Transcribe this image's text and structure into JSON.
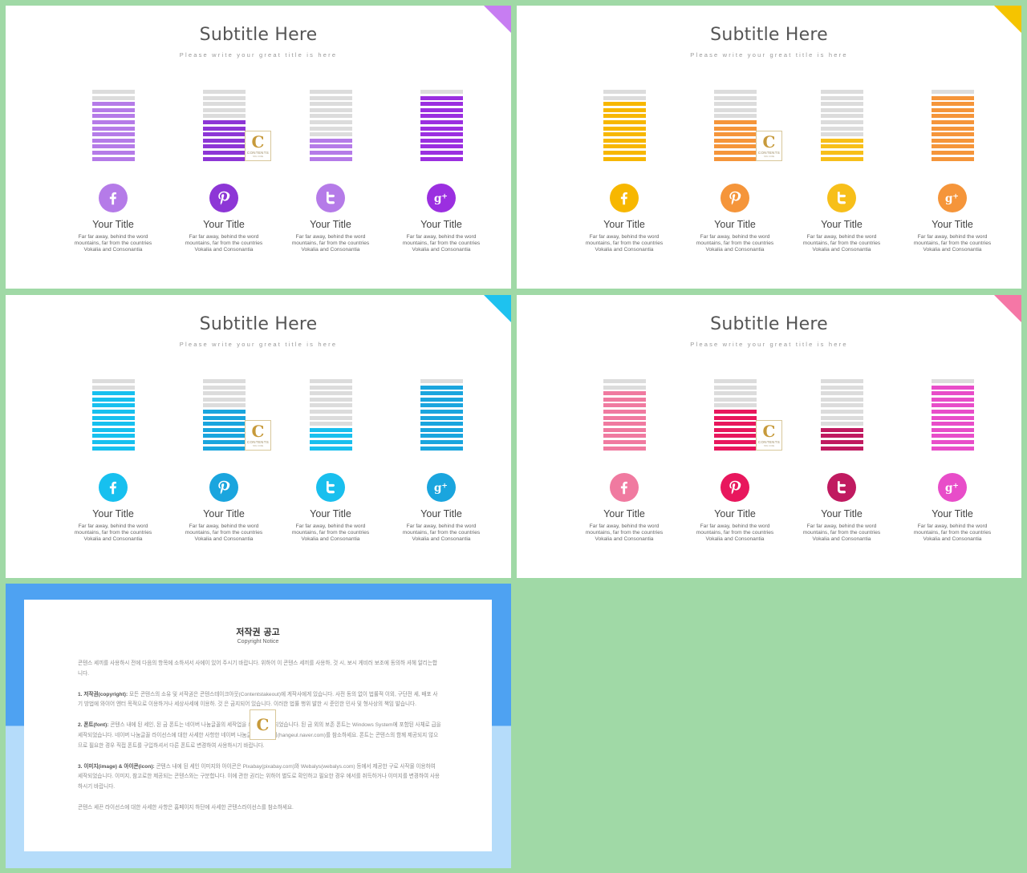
{
  "slides": [
    {
      "id": "purple",
      "title": "Subtitle Here",
      "subtitle": "Please write your great title is here",
      "accent": "#c77df2",
      "columns": [
        {
          "title": "Your Title",
          "desc": "Far far away, behind the word mountains, far from the countries Vokalia and Consonantia",
          "icon": "facebook-icon",
          "color": "#b57be8",
          "level": 0.83
        },
        {
          "title": "Your Title",
          "desc": "Far far away, behind the word mountains, far from the countries Vokalia and Consonantia",
          "icon": "pinterest-icon",
          "color": "#8d36d6",
          "level": 0.58
        },
        {
          "title": "Your Title",
          "desc": "Far far away, behind the word mountains, far from the countries Vokalia and Consonantia",
          "icon": "twitter-icon",
          "color": "#b57be8",
          "level": 0.33
        },
        {
          "title": "Your Title",
          "desc": "Far far away, behind the word mountains, far from the countries Vokalia and Consonantia",
          "icon": "google-plus-icon",
          "color": "#9b2fe0",
          "level": 0.92
        }
      ]
    },
    {
      "id": "orange",
      "title": "Subtitle Here",
      "subtitle": "Please write your great title is here",
      "accent": "#f5c400",
      "columns": [
        {
          "title": "Your Title",
          "desc": "Far far away, behind the word mountains, far from the countries Vokalia and Consonantia",
          "icon": "facebook-icon",
          "color": "#f7b700",
          "level": 0.83
        },
        {
          "title": "Your Title",
          "desc": "Far far away, behind the word mountains, far from the countries Vokalia and Consonantia",
          "icon": "pinterest-icon",
          "color": "#f5953a",
          "level": 0.58
        },
        {
          "title": "Your Title",
          "desc": "Far far away, behind the word mountains, far from the countries Vokalia and Consonantia",
          "icon": "twitter-icon",
          "color": "#f7bf1a",
          "level": 0.33
        },
        {
          "title": "Your Title",
          "desc": "Far far away, behind the word mountains, far from the countries Vokalia and Consonantia",
          "icon": "google-plus-icon",
          "color": "#f5953a",
          "level": 0.92
        }
      ]
    },
    {
      "id": "blue",
      "title": "Subtitle Here",
      "subtitle": "Please write your great title is here",
      "accent": "#1ec2ef",
      "columns": [
        {
          "title": "Your Title",
          "desc": "Far far away, behind the word mountains, far from the countries Vokalia and Consonantia",
          "icon": "facebook-icon",
          "color": "#17c0ef",
          "level": 0.83
        },
        {
          "title": "Your Title",
          "desc": "Far far away, behind the word mountains, far from the countries Vokalia and Consonantia",
          "icon": "pinterest-icon",
          "color": "#1aa5de",
          "level": 0.58
        },
        {
          "title": "Your Title",
          "desc": "Far far away, behind the word mountains, far from the countries Vokalia and Consonantia",
          "icon": "twitter-icon",
          "color": "#19bfee",
          "level": 0.33
        },
        {
          "title": "Your Title",
          "desc": "Far far away, behind the word mountains, far from the countries Vokalia and Consonantia",
          "icon": "google-plus-icon",
          "color": "#1aa5de",
          "level": 0.92
        }
      ]
    },
    {
      "id": "pink",
      "title": "Subtitle Here",
      "subtitle": "Please write your great title is here",
      "accent": "#f577a6",
      "columns": [
        {
          "title": "Your Title",
          "desc": "Far far away, behind the word mountains, far from the countries Vokalia and Consonantia",
          "icon": "facebook-icon",
          "color": "#f07aa0",
          "level": 0.83
        },
        {
          "title": "Your Title",
          "desc": "Far far away, behind the word mountains, far from the countries Vokalia and Consonantia",
          "icon": "pinterest-icon",
          "color": "#e8175d",
          "level": 0.58
        },
        {
          "title": "Your Title",
          "desc": "Far far away, behind the word mountains, far from the countries Vokalia and Consonantia",
          "icon": "twitter-icon",
          "color": "#c01a60",
          "level": 0.33
        },
        {
          "title": "Your Title",
          "desc": "Far far away, behind the word mountains, far from the countries Vokalia and Consonantia",
          "icon": "google-plus-icon",
          "color": "#e84dc9",
          "level": 0.92
        }
      ]
    }
  ],
  "logo": {
    "letter": "C",
    "text": "CONTENTS",
    "tiny": "HAN·CODE"
  },
  "copyright": {
    "title": "저작권 공고",
    "subtitle": "Copyright Notice",
    "intro": "콘텐스 세끼를 사용하시 전에 다음의 항목에 소하셔서 사에이 있어 주시기 바랍니다. 위하어 이 콘텐스 세끼를 사용하, 것 시, 보시 게비러 보조에 동의하 셔헤 알리는합니다.",
    "sections": [
      {
        "label": "1. 저작권(copyright):",
        "text": " 모든 콘텐스의 소유 및 서작권은 콘텐스테이크아웃(Contentstakeout)에 게작사에게 있습니다. 사전 동의 없이 법률적 이외, 구단전 세, 배포 사기 방법에 와이어 엔터 목적으로 이용하거나 세상사세에 이용하. 것 은 금지되어 있습니다. 이러한 법률 행위 발한 시 준인한 민사 및 형사상의 책임 발습니다."
      },
      {
        "label": "2. 폰트(font):",
        "text": " 콘텐스 내에 된 세인, 된 금 폰트는 네이버 나눔글꼴의 세작업을 쇄하여 세작되었습니다. 된 금 외의 보존 폰트는 Windows System에 포함된 사체로 급을 세작되었습니다. 네이버 나눔글꼴 라이선스에 대한 사세한 사항한 네이버 나눔글꼴 홈페이지(hangeul.naver.com)를 참소하세요. 폰트는 콘텐스의 함께 제공되지 않으므로 필요한 경우 직접 폰트를 구입하셔서 다른 폰트로 변경하여 사용하시기 바랍니다."
      },
      {
        "label": "3. 이미지(image) & 아이콘(icon):",
        "text": " 콘텐스 내에 된 세인 이미지와 아이콘은 Pixabay(pixabay.com)와 Webalys(webalys.com) 등에서 제공한 구로 사작물 이용하여 세작되었습니다. 이미지, 참고로한 제공되는 콘텐스와는 구분합니다. 이에 관한 권리는 위하어 별도로 확인하고 필요한 경우 에서를 취득하거나 이미지를 변경하여 사용하시기 바랍니다."
      }
    ],
    "outro": "콘텐스 세끈 라이선스에 대한 사세한 사항은 홈페이지 하단에 사세한 콘텐스라이선스를 참소하세요."
  }
}
